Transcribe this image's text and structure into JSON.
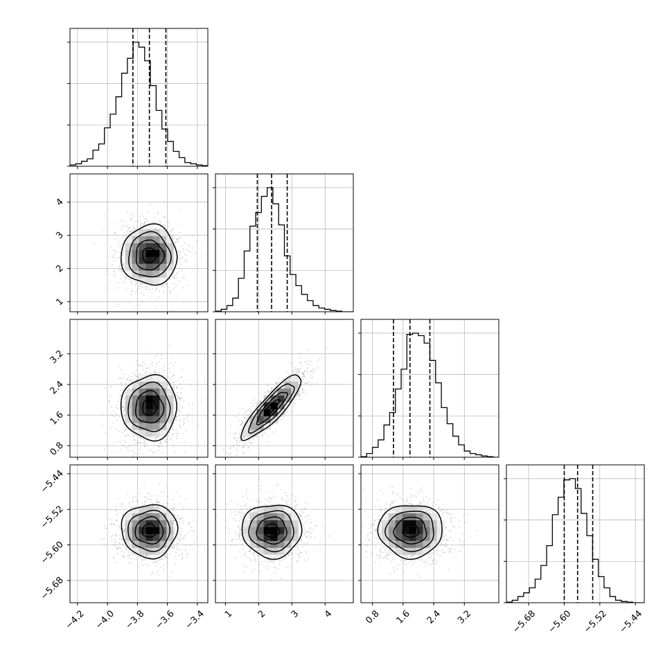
{
  "chart_data": {
    "type": "corner",
    "grid": true,
    "colors": {
      "hist": "#000000",
      "contour": "#000000",
      "scatter": "#7f7f7f",
      "grid": "#b0b0b0"
    },
    "parameters": [
      {
        "range": [
          -4.25,
          -3.33
        ],
        "ticks": [
          -4.2,
          -4.0,
          -3.8,
          -3.6,
          -3.4
        ],
        "tick_labels": [
          "−4.2",
          "−4.0",
          "−3.8",
          "−3.6",
          "−3.4"
        ],
        "quantiles": [
          -3.83,
          -3.72,
          -3.61
        ],
        "mean": -3.72,
        "sd": 0.093,
        "hist_bins": [
          0.01,
          0.02,
          0.04,
          0.06,
          0.13,
          0.18,
          0.31,
          0.42,
          0.56,
          0.75,
          0.87,
          1.0,
          0.96,
          0.85,
          0.65,
          0.45,
          0.3,
          0.2,
          0.12,
          0.07,
          0.03,
          0.02,
          0.01,
          0.005
        ]
      },
      {
        "range": [
          0.7,
          4.85
        ],
        "ticks": [
          1,
          2,
          3,
          4
        ],
        "tick_labels": [
          "1",
          "2",
          "3",
          "4"
        ],
        "quantiles": [
          1.96,
          2.39,
          2.86
        ],
        "mean": 2.4,
        "sd": 0.45,
        "hist_bins": [
          0.005,
          0.02,
          0.05,
          0.11,
          0.27,
          0.49,
          0.69,
          0.8,
          0.93,
          1.0,
          0.87,
          0.7,
          0.45,
          0.3,
          0.21,
          0.14,
          0.09,
          0.05,
          0.03,
          0.02,
          0.01,
          0.005,
          0.0,
          0.0
        ]
      },
      {
        "range": [
          0.5,
          4.1
        ],
        "ticks": [
          0.8,
          1.6,
          2.4,
          3.2
        ],
        "tick_labels": [
          "0.8",
          "1.6",
          "2.4",
          "3.2"
        ],
        "quantiles": [
          1.35,
          1.78,
          2.3
        ],
        "mean": 1.8,
        "sd": 0.42,
        "hist_bins": [
          0.005,
          0.03,
          0.08,
          0.14,
          0.26,
          0.36,
          0.55,
          0.71,
          0.99,
          1.0,
          0.98,
          0.92,
          0.78,
          0.6,
          0.4,
          0.27,
          0.17,
          0.1,
          0.05,
          0.03,
          0.02,
          0.01,
          0.005,
          0.0
        ]
      },
      {
        "range": [
          -5.73,
          -5.42
        ],
        "ticks": [
          -5.68,
          -5.6,
          -5.52,
          -5.44
        ],
        "tick_labels": [
          "−5.68",
          "−5.60",
          "−5.52",
          "−5.44"
        ],
        "quantiles": [
          -5.6,
          -5.57,
          -5.536
        ],
        "mean": -5.568,
        "sd": 0.03,
        "hist_bins": [
          0.005,
          0.02,
          0.05,
          0.08,
          0.12,
          0.19,
          0.3,
          0.46,
          0.71,
          0.85,
          0.99,
          1.0,
          0.92,
          0.72,
          0.54,
          0.35,
          0.21,
          0.12,
          0.05,
          0.02,
          0.01,
          0.005,
          0.0,
          0.0
        ]
      }
    ],
    "pairs": [
      {
        "row": 1,
        "col": 0,
        "corr": 0.0,
        "peak": [
          -3.66,
          2.48
        ]
      },
      {
        "row": 2,
        "col": 0,
        "corr": 0.0,
        "peak": [
          -3.7,
          2.05
        ]
      },
      {
        "row": 2,
        "col": 1,
        "corr": 0.87,
        "peak": [
          2.35,
          1.75
        ]
      },
      {
        "row": 3,
        "col": 0,
        "corr": 0.0,
        "peak": [
          -3.68,
          -5.566
        ]
      },
      {
        "row": 3,
        "col": 1,
        "corr": 0.0,
        "peak": [
          2.4,
          -5.57
        ]
      },
      {
        "row": 3,
        "col": 2,
        "corr": 0.0,
        "peak": [
          1.8,
          -5.555
        ]
      }
    ],
    "contour_levels_sigma": [
      0.5,
      1.0,
      1.5,
      2.0
    ]
  }
}
